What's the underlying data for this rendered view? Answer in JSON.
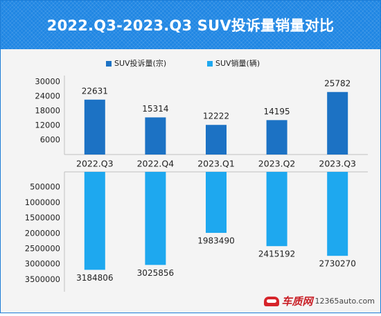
{
  "watermark": {
    "brand": "车质网",
    "site": "12365auto.com"
  },
  "colors": {
    "complaints": "#1c72c4",
    "sales": "#1ea8ef",
    "axis": "#bfbfbf",
    "text": "#222222"
  },
  "chart_data": {
    "type": "bar",
    "title": "2022.Q3-2023.Q3 SUV投诉量销量对比",
    "categories": [
      "2022.Q3",
      "2022.Q4",
      "2023.Q1",
      "2023.Q2",
      "2023.Q3"
    ],
    "legend_position": "top-center",
    "grid": false,
    "series": [
      {
        "name": "SUV投诉量(宗)",
        "values": [
          22631,
          15314,
          12222,
          14195,
          25782
        ],
        "data_labels": [
          "22631",
          "15314",
          "12222",
          "14195",
          "25782"
        ],
        "ylim": [
          0,
          32000
        ],
        "ticks": [
          6000,
          12000,
          18000,
          24000,
          30000
        ],
        "tick_labels": [
          "6000",
          "12000",
          "18000",
          "24000",
          "30000"
        ],
        "direction": "up"
      },
      {
        "name": "SUV销量(辆)",
        "values": [
          3184806,
          3025856,
          1983490,
          2415192,
          2730270
        ],
        "data_labels": [
          "3184806",
          "3025856",
          "1983490",
          "2415192",
          "2730270"
        ],
        "ylim": [
          0,
          3650000
        ],
        "ticks": [
          500000,
          1000000,
          1500000,
          2000000,
          2500000,
          3000000,
          3500000
        ],
        "tick_labels": [
          "500000",
          "1000000",
          "1500000",
          "2000000",
          "2500000",
          "3000000",
          "3500000"
        ],
        "direction": "down"
      }
    ]
  }
}
